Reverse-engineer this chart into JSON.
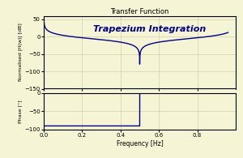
{
  "title": "Transfer Function",
  "subtitle": "Trapezium Integration",
  "xlabel": "Frequency [Hz]",
  "ylabel_mag": "Normalised |H(w)| [dB]",
  "ylabel_phase": "Phase [°]",
  "bg_color": "#f5f5d5",
  "line_color": "#00008B",
  "mag_ylim": [
    -150,
    60
  ],
  "mag_yticks": [
    -150,
    -100,
    -50,
    0,
    50
  ],
  "phase_ylim": [
    -100,
    0
  ],
  "phase_yticks": [
    -100,
    -50,
    0
  ],
  "xlim": [
    0.0,
    1.0
  ],
  "xticks": [
    0.0,
    0.2,
    0.4,
    0.6,
    0.8
  ],
  "fs": 1.0,
  "N_points": 2000
}
